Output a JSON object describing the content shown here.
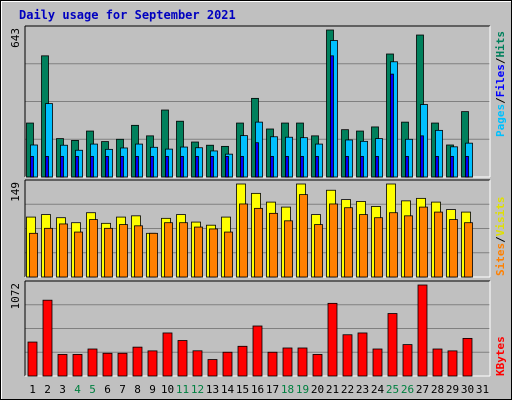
{
  "chart_data": [
    {
      "type": "bar",
      "title": "Daily usage for September 2021",
      "max_label": "643",
      "ylim": [
        0,
        643
      ],
      "categories": [
        "1",
        "2",
        "3",
        "4",
        "5",
        "6",
        "7",
        "8",
        "9",
        "10",
        "11",
        "12",
        "13",
        "14",
        "15",
        "16",
        "17",
        "18",
        "19",
        "20",
        "21",
        "22",
        "23",
        "24",
        "25",
        "26",
        "27",
        "28",
        "29",
        "30",
        "31"
      ],
      "weekend_days": [
        "4",
        "5",
        "11",
        "12",
        "18",
        "19",
        "25",
        "26"
      ],
      "grid": true,
      "series": [
        {
          "name": "Hits",
          "color": "#00805c",
          "values": [
            236,
            530,
            168,
            160,
            201,
            155,
            165,
            226,
            180,
            293,
            244,
            153,
            139,
            134,
            236,
            344,
            210,
            236,
            236,
            180,
            643,
            207,
            201,
            219,
            538,
            240,
            621,
            236,
            140,
            286,
            0
          ]
        },
        {
          "name": "Files",
          "color": "#00c0ff",
          "values": [
            140,
            321,
            139,
            117,
            144,
            121,
            127,
            144,
            130,
            122,
            131,
            128,
            114,
            100,
            181,
            240,
            176,
            174,
            172,
            144,
            597,
            162,
            156,
            168,
            504,
            165,
            317,
            204,
            132,
            148,
            0
          ]
        },
        {
          "name": "Pages",
          "color": "#0000ff",
          "values": [
            90,
            90,
            90,
            90,
            90,
            90,
            90,
            90,
            90,
            90,
            90,
            90,
            90,
            90,
            90,
            150,
            90,
            90,
            90,
            90,
            530,
            90,
            90,
            90,
            450,
            90,
            180,
            90,
            90,
            90,
            0
          ]
        }
      ]
    },
    {
      "type": "bar",
      "max_label": "149",
      "ylim": [
        0,
        149
      ],
      "categories": [
        "1",
        "2",
        "3",
        "4",
        "5",
        "6",
        "7",
        "8",
        "9",
        "10",
        "11",
        "12",
        "13",
        "14",
        "15",
        "16",
        "17",
        "18",
        "19",
        "20",
        "21",
        "22",
        "23",
        "24",
        "25",
        "26",
        "27",
        "28",
        "29",
        "30",
        "31"
      ],
      "grid": true,
      "series": [
        {
          "name": "Visits",
          "color": "#ffff00",
          "values": [
            96,
            100,
            95,
            87,
            103,
            86,
            96,
            98,
            70,
            94,
            100,
            88,
            83,
            96,
            149,
            134,
            120,
            112,
            149,
            100,
            139,
            124,
            121,
            113,
            149,
            122,
            126,
            120,
            108,
            104,
            0
          ]
        },
        {
          "name": "Sites",
          "color": "#ff8000",
          "values": [
            70,
            78,
            85,
            72,
            92,
            78,
            84,
            82,
            70,
            87,
            87,
            80,
            77,
            72,
            117,
            110,
            102,
            90,
            132,
            84,
            117,
            111,
            100,
            95,
            103,
            98,
            112,
            104,
            92,
            87,
            0
          ]
        }
      ]
    },
    {
      "type": "bar",
      "max_label": "1072",
      "ylim": [
        0,
        1072
      ],
      "categories": [
        "1",
        "2",
        "3",
        "4",
        "5",
        "6",
        "7",
        "8",
        "9",
        "10",
        "11",
        "12",
        "13",
        "14",
        "15",
        "16",
        "17",
        "18",
        "19",
        "20",
        "21",
        "22",
        "23",
        "24",
        "25",
        "26",
        "27",
        "28",
        "29",
        "30",
        "31"
      ],
      "grid": true,
      "series": [
        {
          "name": "KBytes",
          "color": "#ff0000",
          "values": [
            400,
            893,
            254,
            254,
            318,
            268,
            268,
            340,
            296,
            507,
            418,
            297,
            194,
            280,
            350,
            589,
            280,
            330,
            330,
            254,
            856,
            486,
            507,
            318,
            736,
            370,
            1072,
            318,
            296,
            443,
            0
          ]
        }
      ]
    }
  ],
  "legend_labels": {
    "pages": "Pages",
    "files": "Files",
    "hits": "Hits",
    "sites": "Sites",
    "visits": "Visits",
    "kbytes": "KBytes",
    "sep": "/"
  }
}
